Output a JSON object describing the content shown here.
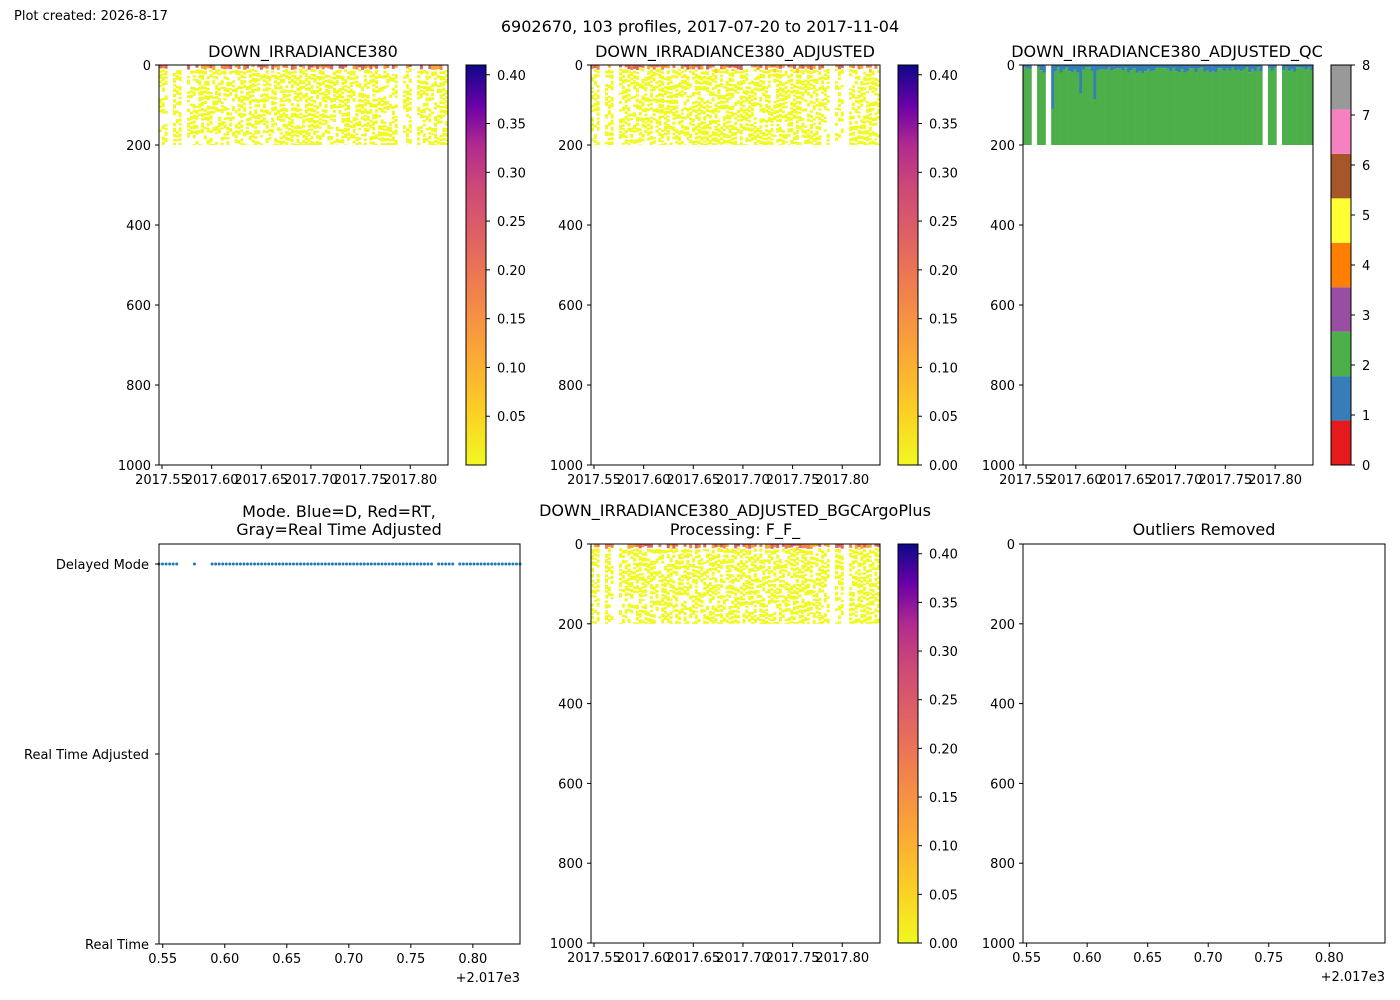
{
  "header": {
    "created_label": "Plot created: 2026-8-17",
    "suptitle": "6902670, 103 profiles, 2017-07-20 to 2017-11-04"
  },
  "panels": {
    "p1": {
      "title": "DOWN_IRRADIANCE380"
    },
    "p2": {
      "title": "DOWN_IRRADIANCE380_ADJUSTED"
    },
    "p3": {
      "title": "DOWN_IRRADIANCE380_ADJUSTED_QC"
    },
    "p4": {
      "title_line1": "Mode. Blue=D, Red=RT,",
      "title_line2": "Gray=Real Time Adjusted"
    },
    "p5": {
      "title_line1": "DOWN_IRRADIANCE380_ADJUSTED_BGCArgoPlus",
      "title_line2": "Processing: F_F_"
    },
    "p6": {
      "title": "Outliers Removed"
    }
  },
  "chart_data": [
    {
      "type": "heatmap",
      "title": "DOWN_IRRADIANCE380",
      "x_ticks": [
        "2017.55",
        "2017.60",
        "2017.65",
        "2017.70",
        "2017.75",
        "2017.80"
      ],
      "x_tick_values": [
        2017.55,
        2017.6,
        2017.65,
        2017.7,
        2017.75,
        2017.8
      ],
      "xlim": [
        2017.547,
        2017.838
      ],
      "y_ticks": [
        "0",
        "200",
        "400",
        "600",
        "800",
        "1000"
      ],
      "y_tick_values": [
        0,
        200,
        400,
        600,
        800,
        1000
      ],
      "ylim": [
        1000,
        0
      ],
      "data_depth_range": [
        0,
        200
      ],
      "colorbar": {
        "ticks": [
          "0.05",
          "0.10",
          "0.15",
          "0.20",
          "0.25",
          "0.30",
          "0.35",
          "0.40"
        ],
        "tick_values": [
          0.05,
          0.1,
          0.15,
          0.2,
          0.25,
          0.3,
          0.35,
          0.4
        ],
        "range": [
          0.0,
          0.41
        ],
        "colormap": "plasma_r"
      }
    },
    {
      "type": "heatmap",
      "title": "DOWN_IRRADIANCE380_ADJUSTED",
      "x_ticks": [
        "2017.55",
        "2017.60",
        "2017.65",
        "2017.70",
        "2017.75",
        "2017.80"
      ],
      "x_tick_values": [
        2017.55,
        2017.6,
        2017.65,
        2017.7,
        2017.75,
        2017.8
      ],
      "xlim": [
        2017.547,
        2017.838
      ],
      "y_ticks": [
        "0",
        "200",
        "400",
        "600",
        "800",
        "1000"
      ],
      "y_tick_values": [
        0,
        200,
        400,
        600,
        800,
        1000
      ],
      "ylim": [
        1000,
        0
      ],
      "data_depth_range": [
        0,
        200
      ],
      "colorbar": {
        "ticks": [
          "0.00",
          "0.05",
          "0.10",
          "0.15",
          "0.20",
          "0.25",
          "0.30",
          "0.35",
          "0.40"
        ],
        "tick_values": [
          0.0,
          0.05,
          0.1,
          0.15,
          0.2,
          0.25,
          0.3,
          0.35,
          0.4
        ],
        "range": [
          0.0,
          0.41
        ],
        "colormap": "plasma_r"
      }
    },
    {
      "type": "heatmap",
      "title": "DOWN_IRRADIANCE380_ADJUSTED_QC",
      "x_ticks": [
        "2017.55",
        "2017.60",
        "2017.65",
        "2017.70",
        "2017.75",
        "2017.80"
      ],
      "x_tick_values": [
        2017.55,
        2017.6,
        2017.65,
        2017.7,
        2017.75,
        2017.8
      ],
      "xlim": [
        2017.547,
        2017.838
      ],
      "y_ticks": [
        "0",
        "200",
        "400",
        "600",
        "800",
        "1000"
      ],
      "y_tick_values": [
        0,
        200,
        400,
        600,
        800,
        1000
      ],
      "ylim": [
        1000,
        0
      ],
      "qc_layers": [
        {
          "flag": 1,
          "depth_range": [
            0,
            30
          ]
        },
        {
          "flag": 2,
          "depth_range": [
            30,
            200
          ]
        }
      ],
      "colorbar": {
        "ticks": [
          "0",
          "1",
          "2",
          "3",
          "4",
          "5",
          "6",
          "7",
          "8"
        ],
        "tick_values": [
          0,
          1,
          2,
          3,
          4,
          5,
          6,
          7,
          8
        ],
        "classes": [
          {
            "flag": 0,
            "color": "#e41a1c"
          },
          {
            "flag": 1,
            "color": "#377eb8"
          },
          {
            "flag": 2,
            "color": "#4daf4a"
          },
          {
            "flag": 3,
            "color": "#984ea3"
          },
          {
            "flag": 4,
            "color": "#ff7f00"
          },
          {
            "flag": 5,
            "color": "#ffff33"
          },
          {
            "flag": 6,
            "color": "#a65628"
          },
          {
            "flag": 7,
            "color": "#f781bf"
          },
          {
            "flag": 8,
            "color": "#999999"
          }
        ]
      }
    },
    {
      "type": "scatter",
      "title": "Mode. Blue=D, Red=RT, Gray=Real Time Adjusted",
      "x_ticks": [
        "0.55",
        "0.60",
        "0.65",
        "0.70",
        "0.75",
        "0.80"
      ],
      "x_tick_values": [
        0.55,
        0.6,
        0.65,
        0.7,
        0.75,
        0.8
      ],
      "x_offset_label": "+2.017e3",
      "xlim": [
        0.547,
        0.838
      ],
      "y_categories": [
        "Real Time",
        "Real Time Adjusted",
        "Delayed Mode"
      ],
      "series": [
        {
          "category": "Delayed Mode",
          "color": "#1f77b4",
          "x_range": [
            0.547,
            0.838
          ],
          "gaps": [
            [
              0.562,
              0.574
            ],
            [
              0.576,
              0.589
            ],
            [
              0.768,
              0.771
            ],
            [
              0.786,
              0.789
            ]
          ]
        }
      ]
    },
    {
      "type": "heatmap",
      "title": "DOWN_IRRADIANCE380_ADJUSTED_BGCArgoPlus Processing: F_F_",
      "x_ticks": [
        "2017.55",
        "2017.60",
        "2017.65",
        "2017.70",
        "2017.75",
        "2017.80"
      ],
      "x_tick_values": [
        2017.55,
        2017.6,
        2017.65,
        2017.7,
        2017.75,
        2017.8
      ],
      "xlim": [
        2017.547,
        2017.838
      ],
      "y_ticks": [
        "0",
        "200",
        "400",
        "600",
        "800",
        "1000"
      ],
      "y_tick_values": [
        0,
        200,
        400,
        600,
        800,
        1000
      ],
      "ylim": [
        1000,
        0
      ],
      "data_depth_range": [
        0,
        200
      ],
      "colorbar": {
        "ticks": [
          "0.00",
          "0.05",
          "0.10",
          "0.15",
          "0.20",
          "0.25",
          "0.30",
          "0.35",
          "0.40"
        ],
        "tick_values": [
          0.0,
          0.05,
          0.1,
          0.15,
          0.2,
          0.25,
          0.3,
          0.35,
          0.4
        ],
        "range": [
          0.0,
          0.41
        ],
        "colormap": "plasma_r"
      }
    },
    {
      "type": "scatter",
      "title": "Outliers Removed",
      "x_ticks": [
        "0.55",
        "0.60",
        "0.65",
        "0.70",
        "0.75",
        "0.80"
      ],
      "x_tick_values": [
        0.55,
        0.6,
        0.65,
        0.7,
        0.75,
        0.8
      ],
      "x_offset_label": "+2.017e3",
      "xlim": [
        0.547,
        0.846
      ],
      "y_ticks": [
        "0",
        "200",
        "400",
        "600",
        "800",
        "1000"
      ],
      "y_tick_values": [
        0,
        200,
        400,
        600,
        800,
        1000
      ],
      "ylim": [
        1000,
        0
      ],
      "series": []
    }
  ]
}
